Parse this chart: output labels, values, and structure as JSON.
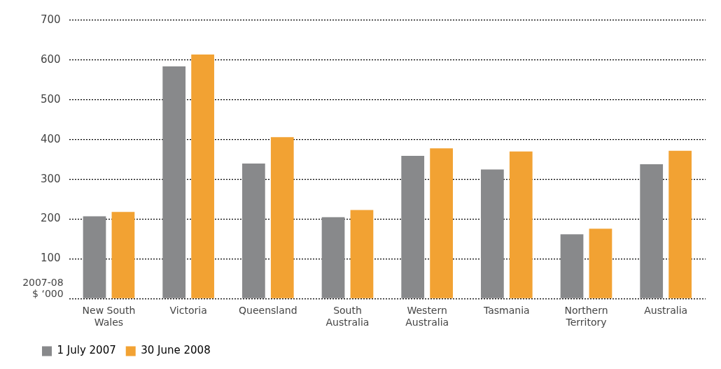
{
  "chart_data": {
    "type": "bar",
    "ylabel": "2007-08 $ ‘000",
    "categories": [
      "New South Wales",
      "Victoria",
      "Queensland",
      "South Australia",
      "Western Australia",
      "Tasmania",
      "Northern Territory",
      "Australia"
    ],
    "series": [
      {
        "name": "1 July 2007",
        "color": "#88898b",
        "values": [
          207,
          584,
          340,
          205,
          359,
          325,
          162,
          338
        ]
      },
      {
        "name": "30 June 2008",
        "color": "#f2a233",
        "values": [
          218,
          614,
          406,
          223,
          378,
          370,
          176,
          372
        ]
      }
    ],
    "ylim": [
      0,
      700
    ],
    "yticks": [
      {
        "value": 0,
        "label": null
      },
      100,
      200,
      300,
      400,
      500,
      600,
      700
    ],
    "grid": "y",
    "legend": "bottom left"
  }
}
